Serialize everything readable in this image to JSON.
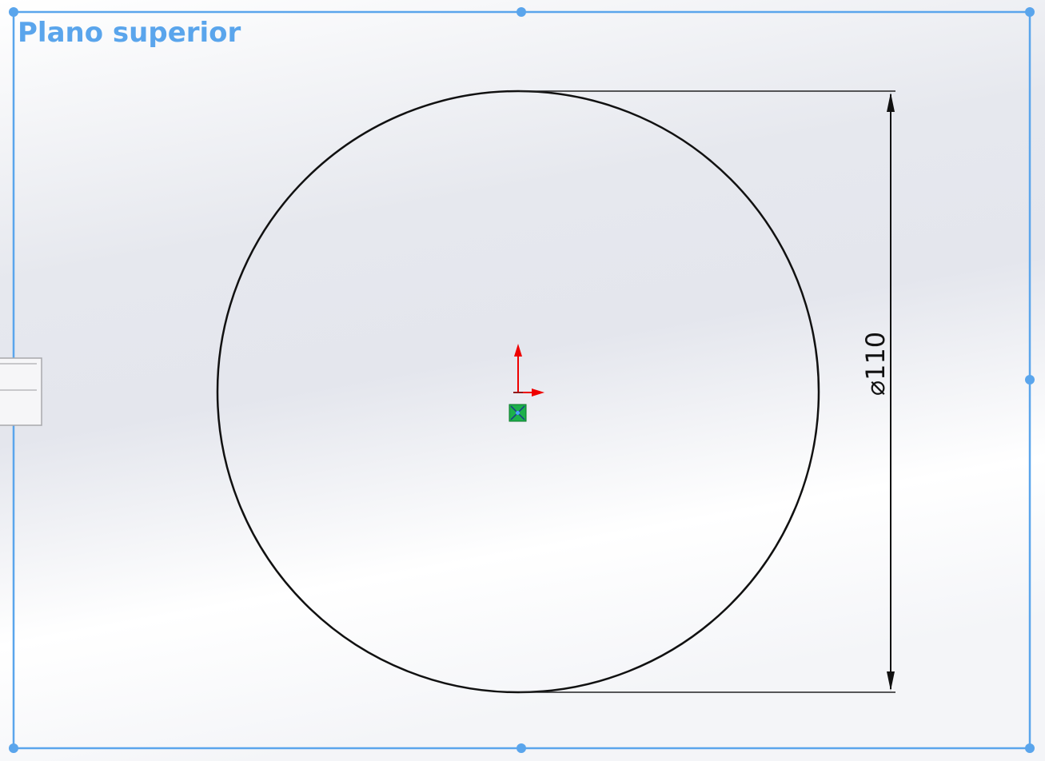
{
  "viewport": {
    "plane_label": "Plano superior",
    "dimension": {
      "label": "⌀110"
    }
  }
}
